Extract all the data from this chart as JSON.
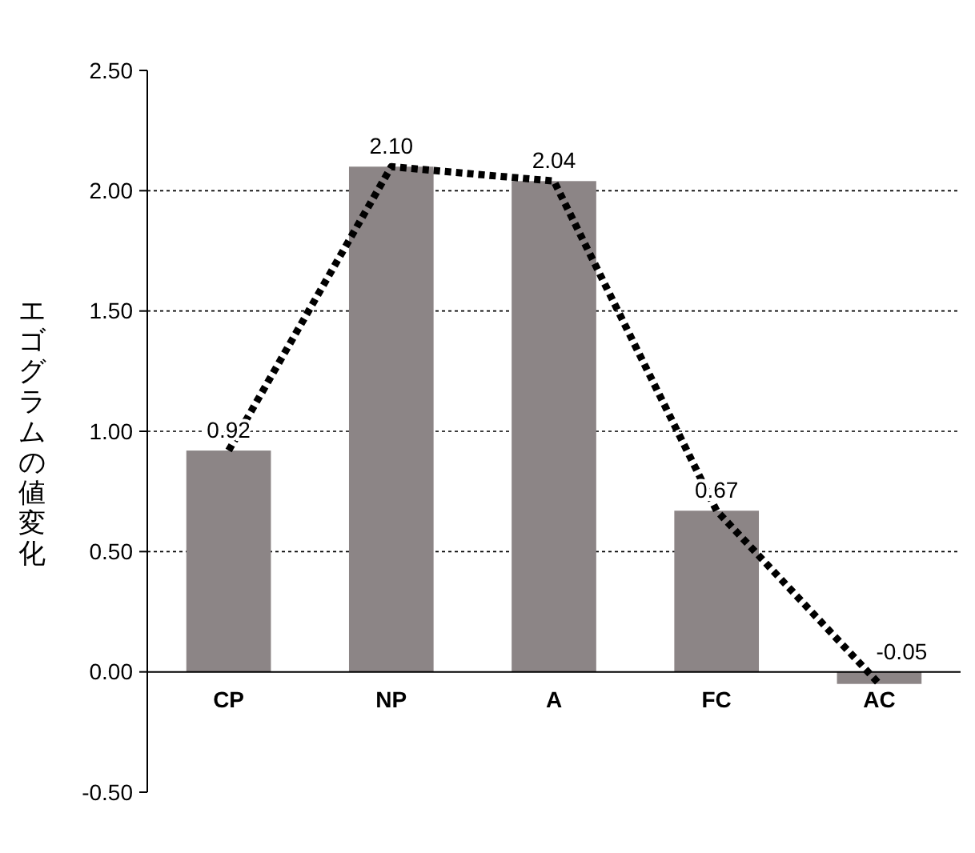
{
  "chart_data": {
    "type": "bar",
    "ylabel": "エゴグラムの値変化",
    "categories": [
      "CP",
      "NP",
      "A",
      "FC",
      "AC"
    ],
    "series": [
      {
        "color": "#8c8586",
        "values": [
          0.92,
          2.1,
          2.04,
          0.67,
          -0.05
        ],
        "value_labels": [
          "0.92",
          "2.10",
          "2.04",
          "0.67",
          "-0.05"
        ]
      },
      {
        "type": "line",
        "color": "#000000",
        "line_style": "dotted",
        "marker": "none",
        "values": [
          0.92,
          2.1,
          2.04,
          0.67,
          -0.05
        ]
      }
    ],
    "ylim": [
      -0.5,
      2.5
    ],
    "yticks": [
      {
        "value": -0.5,
        "label": "-0.50"
      },
      {
        "value": 0,
        "label": "0.00"
      },
      {
        "value": 0.5,
        "label": "0.50"
      },
      {
        "value": 1,
        "label": "1.00"
      },
      {
        "value": 1.5,
        "label": "1.50"
      },
      {
        "value": 2,
        "label": "2.00"
      },
      {
        "value": 2.5,
        "label": "2.50"
      }
    ],
    "grid": "y"
  }
}
